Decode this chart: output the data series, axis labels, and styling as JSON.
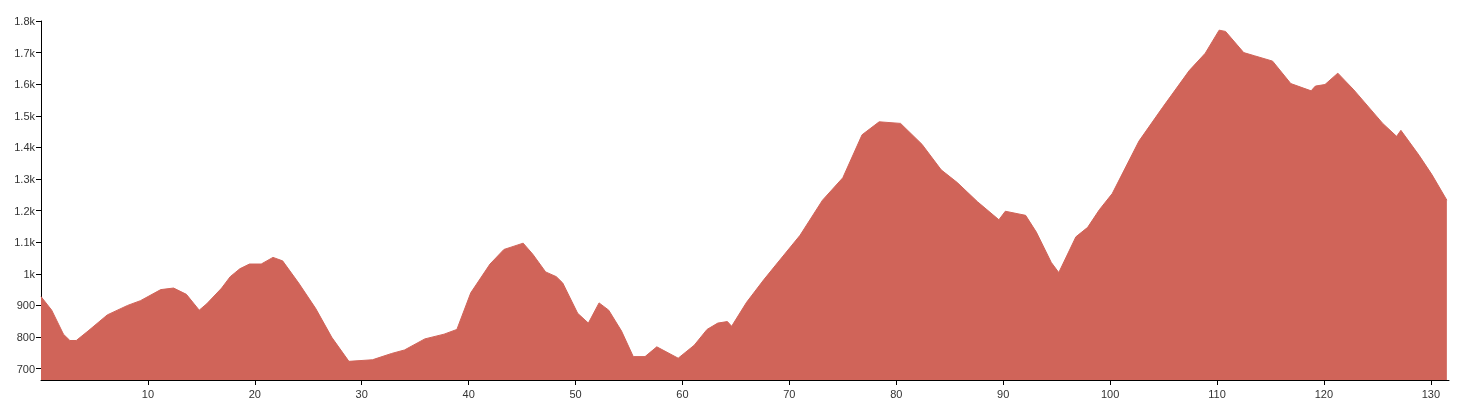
{
  "chart_data": {
    "type": "area",
    "xlim": [
      0,
      131.7
    ],
    "xticks": [
      10,
      20,
      30,
      40,
      50,
      60,
      70,
      80,
      90,
      100,
      110,
      120,
      130
    ],
    "ylim": [
      664,
      1800
    ],
    "yticks": [
      700,
      800,
      900,
      {
        "value": 1000,
        "label": "1k"
      },
      {
        "value": 1100,
        "label": "1.1k"
      },
      {
        "value": 1200,
        "label": "1.2k"
      },
      {
        "value": 1300,
        "label": "1.3k"
      },
      {
        "value": 1400,
        "label": "1.4k"
      },
      {
        "value": 1500,
        "label": "1.5k"
      },
      {
        "value": 1600,
        "label": "1.6k"
      },
      {
        "value": 1700,
        "label": "1.7k"
      },
      {
        "value": 1800,
        "label": "1.8k"
      }
    ],
    "series": [
      {
        "color": "#d06459",
        "x": [
          0,
          1.0,
          2.1,
          2.7,
          3.3,
          4.4,
          6.2,
          8.1,
          9.3,
          11.2,
          12.4,
          13.6,
          14.8,
          15.5,
          16.9,
          17.7,
          18.6,
          19.5,
          20.6,
          21.7,
          22.6,
          24.1,
          25.7,
          27.2,
          28.8,
          31.0,
          32.8,
          34.0,
          35.9,
          37.7,
          38.9,
          40.2,
          42.0,
          43.3,
          45.1,
          46.0,
          47.2,
          48.2,
          48.8,
          50.2,
          51.2,
          52.2,
          53.1,
          54.3,
          55.4,
          56.5,
          57.6,
          59.6,
          61.1,
          62.3,
          63.3,
          64.2,
          64.6,
          66.0,
          67.6,
          68.8,
          71.0,
          73.1,
          75.0,
          76.8,
          78.4,
          80.4,
          82.4,
          84.2,
          85.7,
          87.6,
          89.6,
          90.2,
          92.1,
          93.1,
          94.5,
          95.2,
          96.8,
          97.9,
          99.0,
          100.2,
          102.7,
          104.9,
          107.4,
          108.9,
          110.2,
          110.8,
          112.5,
          113.5,
          115.2,
          116.9,
          118.8,
          119.2,
          120.1,
          121.3,
          122.8,
          125.5,
          126.8,
          127.2,
          128.9,
          130.1,
          131.5
        ],
        "values": [
          928,
          885,
          809,
          789,
          789,
          819,
          870,
          900,
          915,
          950,
          955,
          935,
          885,
          905,
          955,
          991,
          1016,
          1031,
          1031,
          1052,
          1041,
          971,
          890,
          799,
          723,
          728,
          748,
          759,
          794,
          809,
          824,
          940,
          1031,
          1077,
          1097,
          1062,
          1006,
          991,
          971,
          875,
          844,
          908,
          885,
          819,
          738,
          738,
          769,
          733,
          774,
          824,
          844,
          849,
          834,
          910,
          981,
          1031,
          1122,
          1233,
          1304,
          1440,
          1481,
          1476,
          1410,
          1329,
          1289,
          1228,
          1171,
          1198,
          1185,
          1132,
          1036,
          1004,
          1117,
          1147,
          1203,
          1254,
          1420,
          1526,
          1643,
          1698,
          1771,
          1767,
          1700,
          1690,
          1673,
          1602,
          1579,
          1594,
          1599,
          1635,
          1582,
          1476,
          1435,
          1454,
          1375,
          1314,
          1233
        ]
      }
    ]
  }
}
